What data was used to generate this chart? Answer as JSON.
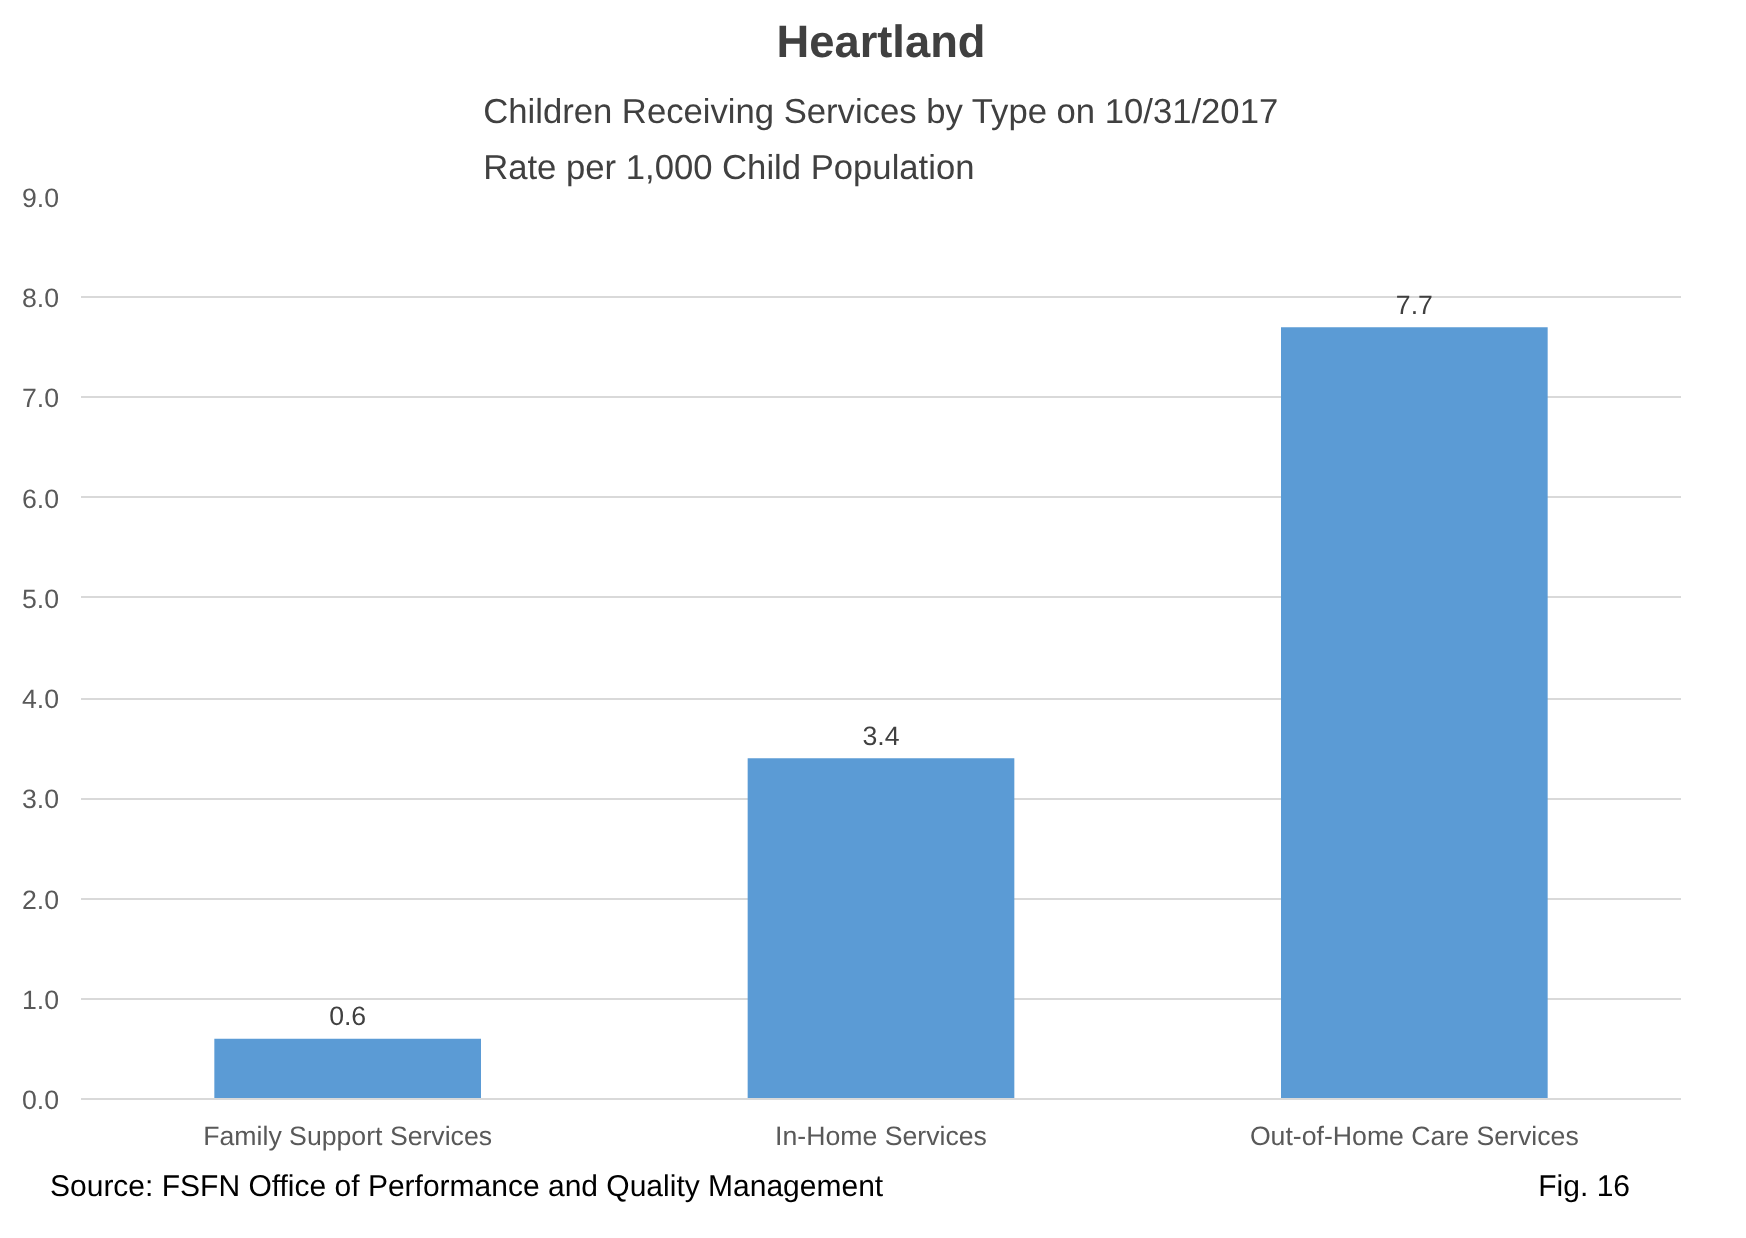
{
  "chart_data": {
    "type": "bar",
    "title": "Heartland",
    "subtitle": "Children Receiving Services by Type on 10/31/2017\nRate per 1,000 Child Population",
    "categories": [
      "Family Support Services",
      "In-Home Services",
      "Out-of-Home Care Services"
    ],
    "values": [
      0.6,
      3.4,
      7.7
    ],
    "color": "#5b9bd5",
    "data_labels": true,
    "grid": "y",
    "ylim": [
      0,
      9
    ],
    "yticks": [
      {
        "value": 0,
        "label": "0.0"
      },
      {
        "value": 1,
        "label": "1.0"
      },
      {
        "value": 2,
        "label": "2.0"
      },
      {
        "value": 3,
        "label": "3.0"
      },
      {
        "value": 4,
        "label": "4.0"
      },
      {
        "value": 5,
        "label": "5.0"
      },
      {
        "value": 6,
        "label": "6.0"
      },
      {
        "value": 7,
        "label": "7.0"
      },
      {
        "value": 8,
        "label": "8.0"
      },
      {
        "value": 9,
        "label": "9.0"
      }
    ],
    "annotations": [
      "Source: FSFN Office of Performance and Quality Management",
      "Fig. 16"
    ]
  }
}
